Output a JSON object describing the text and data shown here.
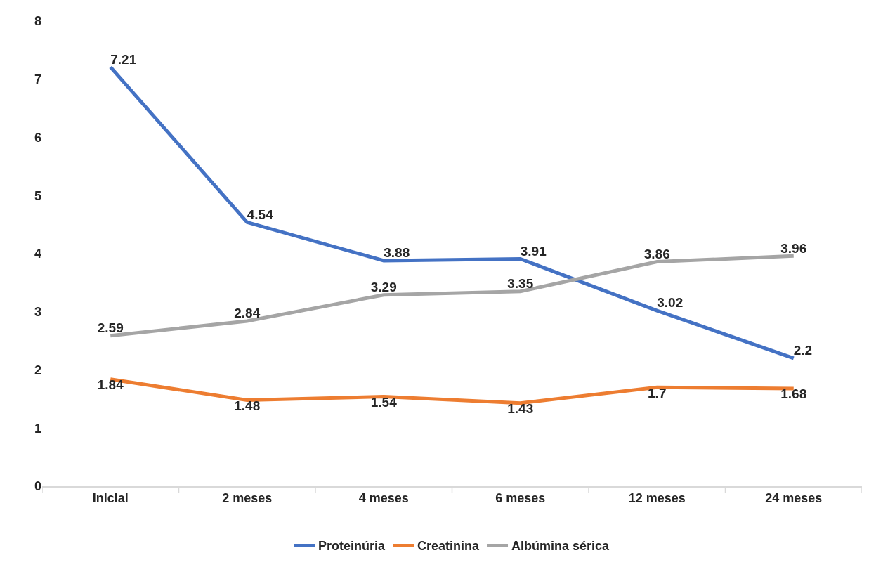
{
  "chart_data": {
    "type": "line",
    "categories": [
      "Inicial",
      "2 meses",
      "4 meses",
      "6 meses",
      "12 meses",
      "24 meses"
    ],
    "series": [
      {
        "name": "Proteinúria",
        "color": "#4472c4",
        "values": [
          7.21,
          4.54,
          3.88,
          3.91,
          3.02,
          2.2
        ]
      },
      {
        "name": "Creatinina",
        "color": "#ed7d31",
        "values": [
          1.84,
          1.48,
          1.54,
          1.43,
          1.7,
          1.68
        ]
      },
      {
        "name": "Albúmina sérica",
        "color": "#a5a5a5",
        "values": [
          2.59,
          2.84,
          3.29,
          3.35,
          3.86,
          3.96
        ]
      }
    ],
    "ylim": [
      0,
      8
    ],
    "yticks": [
      0,
      1,
      2,
      3,
      4,
      5,
      6,
      7,
      8
    ],
    "grid": false,
    "legend": "bottom",
    "data_labels": true,
    "marker": "none",
    "line_style": "solid"
  }
}
